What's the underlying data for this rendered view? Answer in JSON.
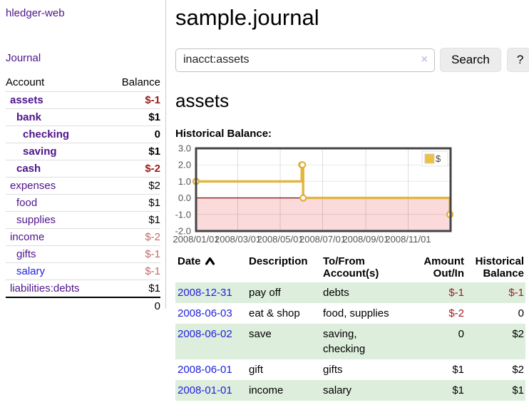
{
  "sidebar": {
    "brand": "hledger-web",
    "nav": [
      {
        "label": "Journal"
      }
    ],
    "accounts_table": {
      "headers": {
        "account": "Account",
        "balance": "Balance"
      },
      "rows": [
        {
          "name": "assets",
          "depth": 0,
          "bold": true,
          "balance": "$-1",
          "balance_tone": "negative"
        },
        {
          "name": "bank",
          "depth": 1,
          "bold": true,
          "balance": "$1",
          "balance_tone": "normal"
        },
        {
          "name": "checking",
          "depth": 2,
          "bold": true,
          "balance": "0",
          "balance_tone": "normal"
        },
        {
          "name": "saving",
          "depth": 2,
          "bold": true,
          "balance": "$1",
          "balance_tone": "normal"
        },
        {
          "name": "cash",
          "depth": 1,
          "bold": true,
          "balance": "$-2",
          "balance_tone": "negative"
        },
        {
          "name": "expenses",
          "depth": 0,
          "bold": false,
          "balance": "$2",
          "balance_tone": "normal"
        },
        {
          "name": "food",
          "depth": 1,
          "bold": false,
          "balance": "$1",
          "balance_tone": "normal"
        },
        {
          "name": "supplies",
          "depth": 1,
          "bold": false,
          "balance": "$1",
          "balance_tone": "normal"
        },
        {
          "name": "income",
          "depth": 0,
          "bold": false,
          "balance": "$-2",
          "balance_tone": "muted-negative"
        },
        {
          "name": "gifts",
          "depth": 1,
          "bold": false,
          "balance": "$-1",
          "balance_tone": "muted-negative"
        },
        {
          "name": "salary",
          "depth": 1,
          "bold": false,
          "link_tone": "blue",
          "balance": "$-1",
          "balance_tone": "muted-negative"
        },
        {
          "name": "liabilities:debts",
          "depth": 0,
          "bold": false,
          "balance": "$1",
          "balance_tone": "normal"
        }
      ],
      "total": "0"
    }
  },
  "header": {
    "title": "sample.journal"
  },
  "search": {
    "value": "inacct:assets",
    "clear_icon": "×",
    "button": "Search",
    "help_button": "?"
  },
  "account_page": {
    "heading": "assets",
    "chart_label": "Historical Balance:"
  },
  "chart_data": {
    "type": "line",
    "step": true,
    "title": "Historical Balance:",
    "series": [
      {
        "name": "$",
        "color": "#edc240",
        "points": [
          [
            "2008-01-01",
            1
          ],
          [
            "2008-06-01",
            2
          ],
          [
            "2008-06-02",
            2
          ],
          [
            "2008-06-03",
            0
          ],
          [
            "2008-12-31",
            -1
          ]
        ]
      }
    ],
    "x_ticks": [
      "2008/01/01",
      "2008/03/01",
      "2008/05/01",
      "2008/07/01",
      "2008/09/01",
      "2008/11/01"
    ],
    "y_ticks": [
      3.0,
      2.0,
      1.0,
      0.0,
      -1.0,
      -2.0
    ],
    "xlim": [
      "2008-01-01",
      "2009-01-01"
    ],
    "ylim": [
      -2,
      3
    ],
    "grid": true,
    "legend_position": "top-right",
    "negative_fill": "#fadada",
    "zero_line_color": "#8e1a1a",
    "tick_color": "#545454"
  },
  "transactions": {
    "columns": [
      "Date",
      "Description",
      "To/From Account(s)",
      "Amount Out/In",
      "Historical Balance"
    ],
    "sort": {
      "column": "Date",
      "direction": "ascending"
    },
    "rows": [
      {
        "date": "2008-12-31",
        "description": "pay off",
        "accounts": "debts",
        "amount": "$-1",
        "amount_tone": "negative",
        "balance": "$-1",
        "balance_tone": "negative"
      },
      {
        "date": "2008-06-03",
        "description": "eat & shop",
        "accounts": "food, supplies",
        "amount": "$-2",
        "amount_tone": "negative",
        "balance": "0",
        "balance_tone": "normal"
      },
      {
        "date": "2008-06-02",
        "description": "save",
        "accounts": "saving, checking",
        "amount": "0",
        "amount_tone": "normal",
        "balance": "$2",
        "balance_tone": "normal"
      },
      {
        "date": "2008-06-01",
        "description": "gift",
        "accounts": "gifts",
        "amount": "$1",
        "amount_tone": "normal",
        "balance": "$2",
        "balance_tone": "normal"
      },
      {
        "date": "2008-01-01",
        "description": "income",
        "accounts": "salary",
        "amount": "$1",
        "amount_tone": "normal",
        "balance": "$1",
        "balance_tone": "normal"
      }
    ]
  }
}
